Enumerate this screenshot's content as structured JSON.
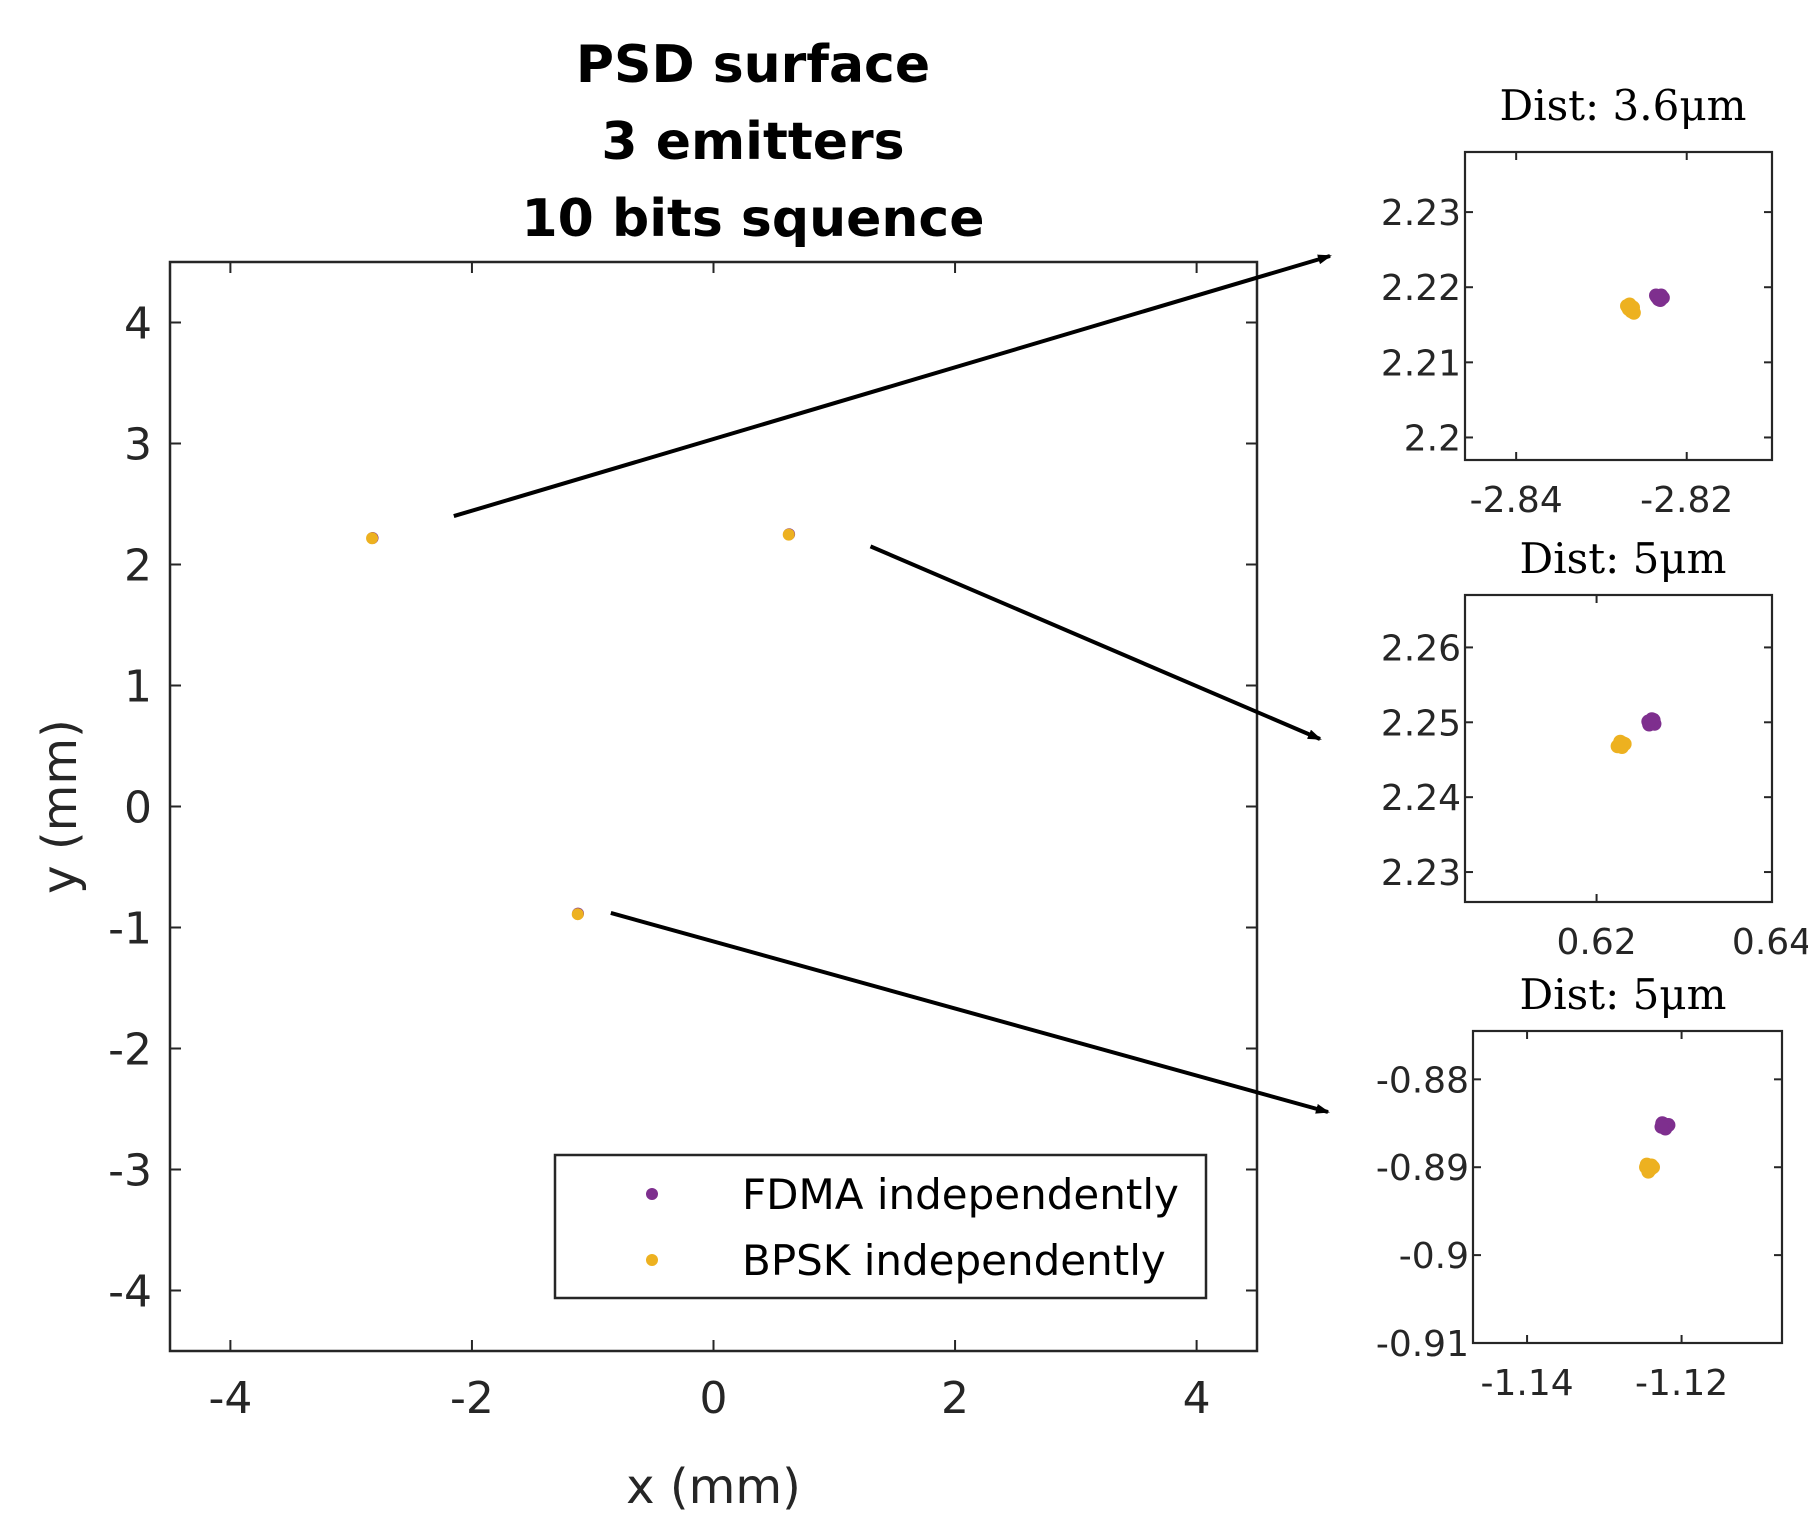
{
  "chart_data": [
    {
      "type": "scatter",
      "role": "main",
      "title": [
        "PSD surface",
        "3 emitters",
        "10 bits squence"
      ],
      "xlabel": "x (mm)",
      "ylabel": "y (mm)",
      "xlim": [
        -4.5,
        4.5
      ],
      "ylim": [
        -4.5,
        4.5
      ],
      "xticks": [
        -4,
        -2,
        0,
        2,
        4
      ],
      "xtick_labels": [
        "-4",
        "-2",
        "0",
        "2",
        "4"
      ],
      "yticks": [
        4,
        3,
        2,
        1,
        0,
        -1,
        -2,
        -3,
        -4
      ],
      "ytick_labels": [
        "4",
        "3",
        "2",
        "1",
        "0",
        "-1",
        "-2",
        "-3",
        "-4"
      ],
      "grid": false,
      "legend_position": "bottom-right",
      "series": [
        {
          "name": "FDMA independently",
          "color": "#7E2F8E",
          "points": [
            [
              -2.823,
              2.219
            ],
            [
              0.626,
              2.25
            ],
            [
              -1.122,
              -0.8855
            ]
          ]
        },
        {
          "name": "BPSK independently",
          "color": "#EDB120",
          "points": [
            [
              -2.827,
              2.217
            ],
            [
              0.623,
              2.247
            ],
            [
              -1.124,
              -0.89
            ]
          ]
        }
      ]
    },
    {
      "type": "scatter",
      "role": "inset",
      "title": "Dist: 3.6μm",
      "xlim": [
        -2.846,
        -2.81
      ],
      "ylim": [
        2.197,
        2.238
      ],
      "xticks": [
        -2.84,
        -2.82
      ],
      "xtick_labels": [
        "-2.84",
        "-2.82"
      ],
      "yticks": [
        2.23,
        2.22,
        2.21,
        2.2
      ],
      "ytick_labels": [
        "2.23",
        "2.22",
        "2.21",
        "2.2"
      ],
      "series": [
        {
          "name": "FDMA independently",
          "color": "#7E2F8E",
          "points": [
            [
              -2.8235,
              2.2187
            ],
            [
              -2.823,
              2.2189
            ],
            [
              -2.8233,
              2.2184
            ],
            [
              -2.8228,
              2.2186
            ],
            [
              -2.8236,
              2.2189
            ],
            [
              -2.8231,
              2.2183
            ]
          ]
        },
        {
          "name": "BPSK independently",
          "color": "#EDB120",
          "points": [
            [
              -2.827,
              2.2175
            ],
            [
              -2.8265,
              2.2168
            ],
            [
              -2.8263,
              2.2173
            ],
            [
              -2.8268,
              2.2171
            ],
            [
              -2.8262,
              2.2166
            ],
            [
              -2.8267,
              2.2177
            ]
          ]
        }
      ],
      "arrow_from": [
        -2.15,
        2.4
      ]
    },
    {
      "type": "scatter",
      "role": "inset",
      "title": "Dist: 5μm",
      "xlim": [
        0.605,
        0.64
      ],
      "ylim": [
        2.226,
        2.267
      ],
      "xticks": [
        0.62,
        0.64
      ],
      "xtick_labels": [
        "0.62",
        "0.64"
      ],
      "yticks": [
        2.26,
        2.25,
        2.24,
        2.23
      ],
      "ytick_labels": [
        "2.26",
        "2.25",
        "2.24",
        "2.23"
      ],
      "series": [
        {
          "name": "FDMA independently",
          "color": "#7E2F8E",
          "points": [
            [
              0.6262,
              2.25
            ],
            [
              0.6265,
              2.2503
            ],
            [
              0.626,
              2.2497
            ],
            [
              0.6266,
              2.2498
            ],
            [
              0.6263,
              2.2504
            ],
            [
              0.6259,
              2.2501
            ]
          ]
        },
        {
          "name": "BPSK independently",
          "color": "#EDB120",
          "points": [
            [
              0.6226,
              2.247
            ],
            [
              0.623,
              2.2472
            ],
            [
              0.6224,
              2.2468
            ],
            [
              0.6229,
              2.2467
            ],
            [
              0.6232,
              2.2471
            ],
            [
              0.6227,
              2.2474
            ]
          ]
        }
      ],
      "arrow_from": [
        1.3,
        2.15
      ]
    },
    {
      "type": "scatter",
      "role": "inset",
      "title": "Dist: 5μm",
      "xlim": [
        -1.147,
        -1.107
      ],
      "ylim": [
        -0.91,
        -0.8745
      ],
      "xticks": [
        -1.14,
        -1.12
      ],
      "xtick_labels": [
        "-1.14",
        "-1.12"
      ],
      "yticks": [
        -0.88,
        -0.89,
        -0.9,
        -0.91
      ],
      "ytick_labels": [
        "-0.88",
        "-0.89",
        "-0.9",
        "-0.91"
      ],
      "series": [
        {
          "name": "FDMA independently",
          "color": "#7E2F8E",
          "points": [
            [
              -1.1223,
              -0.8851
            ],
            [
              -1.1219,
              -0.8853
            ],
            [
              -1.1225,
              -0.885
            ],
            [
              -1.1217,
              -0.8852
            ],
            [
              -1.1221,
              -0.8856
            ],
            [
              -1.1226,
              -0.8854
            ]
          ]
        },
        {
          "name": "BPSK independently",
          "color": "#EDB120",
          "points": [
            [
              -1.1245,
              -0.8897
            ],
            [
              -1.124,
              -0.8902
            ],
            [
              -1.1237,
              -0.89
            ],
            [
              -1.1243,
              -0.8905
            ],
            [
              -1.1239,
              -0.8898
            ],
            [
              -1.1246,
              -0.89
            ]
          ]
        }
      ],
      "arrow_from": [
        -0.85,
        -0.88
      ]
    }
  ]
}
